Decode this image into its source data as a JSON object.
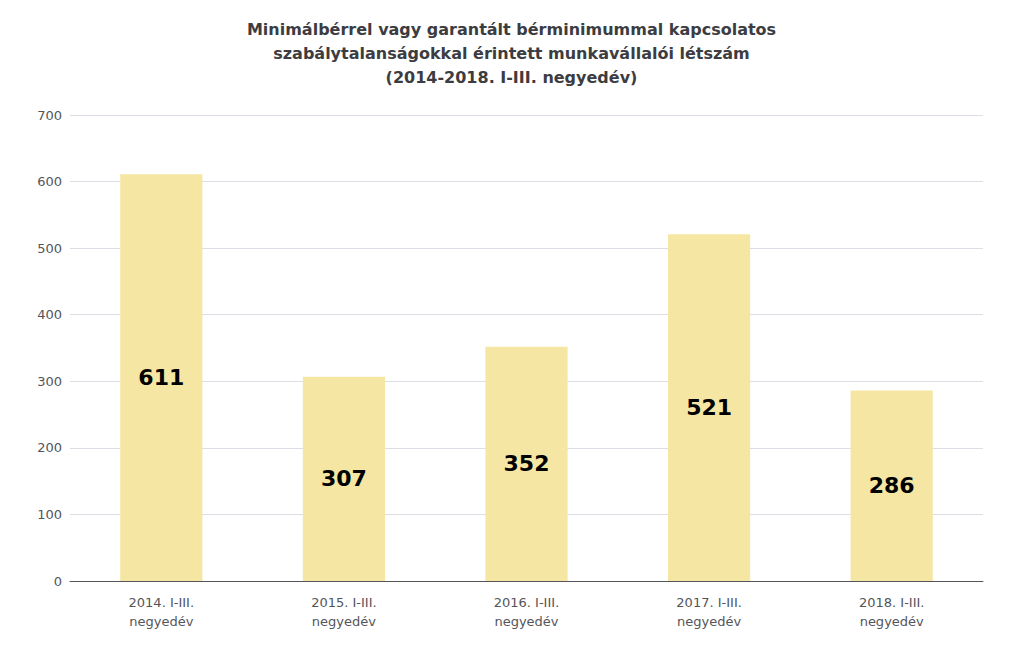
{
  "chart_data": {
    "type": "bar",
    "title": "Minimálbérrel vagy garantált bérminimummal kapcsolatos\nszabálytalanságokkal érintett munkavállalói létszám\n(2014-2018. I-III. negyedév)",
    "categories": [
      "2014. I-III.\nnegyedév",
      "2015. I-III.\nnegyedév",
      "2016. I-III.\nnegyedév",
      "2017. I-III.\nnegyedév",
      "2018. I-III.\nnegyedév"
    ],
    "values": [
      611,
      307,
      352,
      521,
      286
    ],
    "color": "#F5E6A3",
    "ylim": [
      0,
      700
    ],
    "yticks": [
      0,
      100,
      200,
      300,
      400,
      500,
      600,
      700
    ],
    "grid": true,
    "data_labels": true
  }
}
